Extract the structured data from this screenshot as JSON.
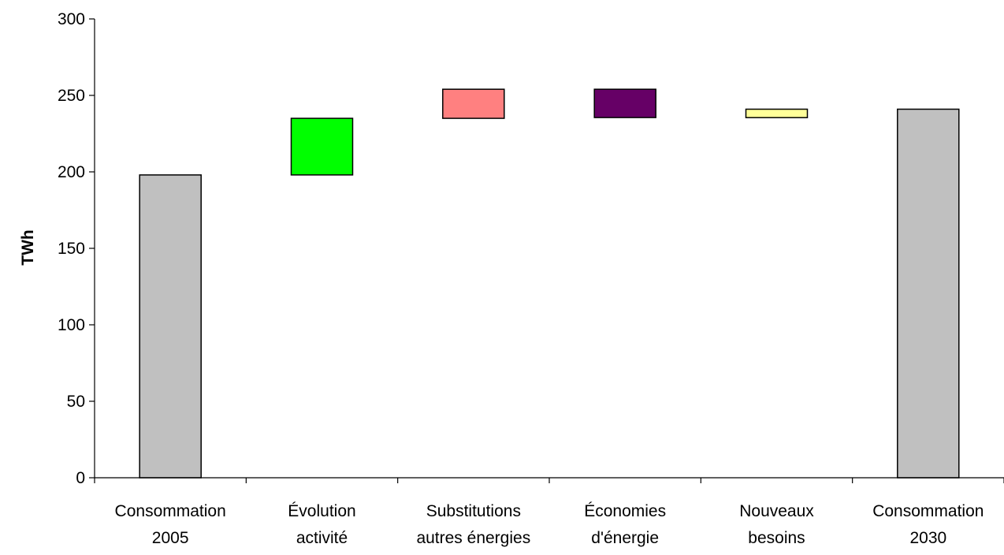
{
  "chart_data": {
    "type": "bar",
    "subtype": "waterfall",
    "title": "",
    "xlabel": "",
    "ylabel": "TWh",
    "ylim": [
      0,
      300
    ],
    "yticks": [
      0,
      50,
      100,
      150,
      200,
      250,
      300
    ],
    "grid": false,
    "legend": "none",
    "categories": [
      [
        "Consommation",
        "2005"
      ],
      [
        "Évolution",
        "activité"
      ],
      [
        "Substitutions",
        "autres énergies"
      ],
      [
        "Économies",
        "d'énergie"
      ],
      [
        "Nouveaux",
        "besoins"
      ],
      [
        "Consommation",
        "2030"
      ]
    ],
    "bars": [
      {
        "start": 0,
        "end": 198,
        "color": "#C0C0C0"
      },
      {
        "start": 198,
        "end": 235,
        "color": "#00FF00"
      },
      {
        "start": 235,
        "end": 254,
        "color": "#FF8080"
      },
      {
        "start": 254,
        "end": 235.5,
        "color": "#660066"
      },
      {
        "start": 235.5,
        "end": 241,
        "color": "#FFFF99"
      },
      {
        "start": 0,
        "end": 241,
        "color": "#C0C0C0"
      }
    ]
  }
}
